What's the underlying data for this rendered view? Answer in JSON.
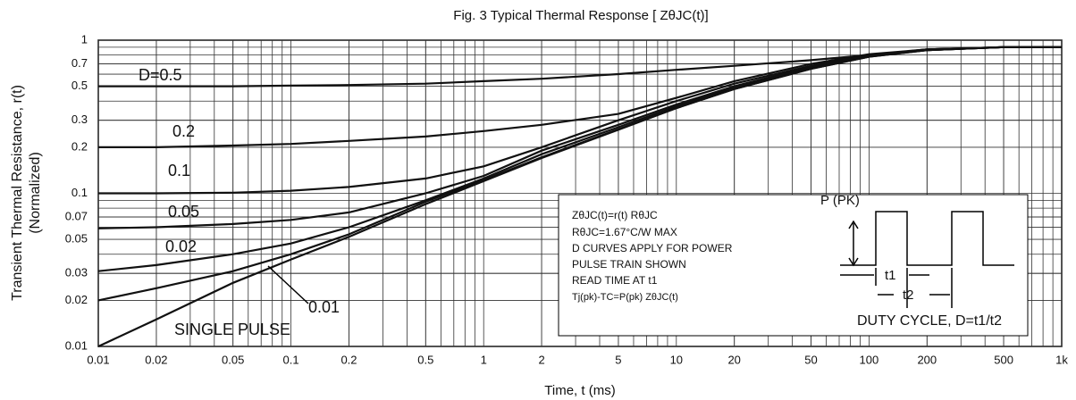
{
  "chart_data": {
    "type": "line",
    "title": "Fig. 3 Typical Thermal Response [ ZθJC(t)]",
    "x_label": "Time, t (ms)",
    "y_label": [
      "Transient Thermal Resistance, r(t)",
      "(Normalized)"
    ],
    "log_x": true,
    "log_y": true,
    "grid": true,
    "xlim": [
      0.01,
      1000
    ],
    "ylim": [
      0.01,
      1
    ],
    "xticks": [
      0.01,
      0.02,
      0.05,
      0.1,
      0.2,
      0.5,
      1,
      2,
      5,
      10,
      20,
      50,
      100,
      200,
      500,
      {
        "value": 1000,
        "label": "1k"
      }
    ],
    "yticks": [
      0.01,
      0.02,
      0.03,
      0.05,
      0.07,
      0.1,
      0.2,
      0.3,
      0.5,
      0.7,
      1
    ],
    "x": [
      0.01,
      0.02,
      0.05,
      0.1,
      0.2,
      0.5,
      1,
      2,
      5,
      10,
      20,
      50,
      100,
      200,
      500,
      1000
    ],
    "series": [
      {
        "name": "D=0.5",
        "color": "#111111",
        "values": [
          0.5,
          0.5,
          0.5,
          0.505,
          0.51,
          0.52,
          0.54,
          0.56,
          0.6,
          0.64,
          0.68,
          0.74,
          0.8,
          0.86,
          0.9,
          0.9
        ]
      },
      {
        "name": "0.2",
        "color": "#111111",
        "values": [
          0.2,
          0.2,
          0.205,
          0.21,
          0.22,
          0.235,
          0.255,
          0.28,
          0.33,
          0.42,
          0.54,
          0.7,
          0.81,
          0.87,
          0.9,
          0.9
        ]
      },
      {
        "name": "0.1",
        "color": "#111111",
        "values": [
          0.1,
          0.1,
          0.101,
          0.104,
          0.11,
          0.125,
          0.15,
          0.2,
          0.3,
          0.4,
          0.52,
          0.68,
          0.8,
          0.87,
          0.9,
          0.9
        ]
      },
      {
        "name": "0.05",
        "color": "#111111",
        "values": [
          0.059,
          0.06,
          0.063,
          0.067,
          0.075,
          0.1,
          0.13,
          0.19,
          0.28,
          0.38,
          0.5,
          0.67,
          0.8,
          0.87,
          0.9,
          0.9
        ]
      },
      {
        "name": "0.02",
        "color": "#111111",
        "values": [
          0.031,
          0.034,
          0.04,
          0.047,
          0.06,
          0.09,
          0.125,
          0.18,
          0.27,
          0.37,
          0.49,
          0.66,
          0.79,
          0.86,
          0.9,
          0.9
        ]
      },
      {
        "name": "0.01",
        "color": "#111111",
        "values": [
          0.02,
          0.024,
          0.031,
          0.04,
          0.054,
          0.088,
          0.122,
          0.172,
          0.262,
          0.36,
          0.48,
          0.65,
          0.78,
          0.86,
          0.9,
          0.9
        ]
      },
      {
        "name": "SINGLE PULSE",
        "color": "#111111",
        "values": [
          0.01,
          0.015,
          0.026,
          0.037,
          0.052,
          0.085,
          0.12,
          0.17,
          0.26,
          0.36,
          0.48,
          0.65,
          0.78,
          0.86,
          0.9,
          0.9
        ]
      }
    ],
    "annotations": [
      "ZθJC(t)=r(t) RθJC",
      "RθJC=1.67°C/W MAX",
      "D CURVES APPLY FOR POWER",
      "PULSE TRAIN SHOWN",
      "READ TIME AT t1",
      "Tj(pk)-TC=P(pk) ZθJC(t)",
      "P (PK)",
      "t1",
      "t2",
      "DUTY CYCLE, D=t1/t2"
    ]
  }
}
